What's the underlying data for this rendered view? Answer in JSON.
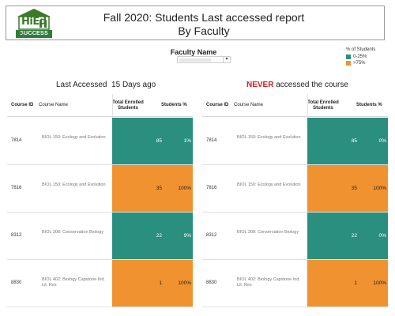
{
  "header": {
    "logo_text": "HiEd",
    "logo_subtext": "SUCCESS",
    "title_line1": "Fall 2020: Students Last accessed report",
    "title_line2": "By Faculty"
  },
  "filter": {
    "label": "Faculty Name",
    "arrow": "▾"
  },
  "legend": {
    "title": "% of Students",
    "items": [
      {
        "label": "0-25%",
        "color": "#2a8f7e"
      },
      {
        "label": ">75%",
        "color": "#f0922f"
      }
    ]
  },
  "left_section": {
    "title_prefix": "Last Accessed",
    "title_suffix": "15 Days ago"
  },
  "right_section": {
    "title_emph": "NEVER",
    "title_rest": "accessed the course"
  },
  "columns": {
    "id": "Course ID",
    "name": "Course Name",
    "enrolled_line1": "Total Enrolled",
    "enrolled_line2": "Students",
    "pct": "Students %"
  },
  "left_rows": [
    {
      "id": "7814",
      "name": "BIOL 150: Ecology and Evolution",
      "enrolled": "85",
      "pct": "1%",
      "band": "0-25%"
    },
    {
      "id": "7816",
      "name": "BIOL 150: Ecology and Evolution",
      "enrolled": "35",
      "pct": "100%",
      "band": ">75%"
    },
    {
      "id": "8312",
      "name": "BIOL 308: Conservation Biology",
      "enrolled": "22",
      "pct": "9%",
      "band": "0-25%"
    },
    {
      "id": "8830",
      "name": "BIOL 402: Biology Capstone Ind. Lit. Res",
      "enrolled": "1",
      "pct": "100%",
      "band": ">75%"
    }
  ],
  "right_rows": [
    {
      "id": "7814",
      "name": "BIOL 150: Ecology and Evolution",
      "enrolled": "85",
      "pct": "0%",
      "band": "0-25%"
    },
    {
      "id": "7816",
      "name": "BIOL 150: Ecology and Evolution",
      "enrolled": "35",
      "pct": "100%",
      "band": ">75%"
    },
    {
      "id": "8312",
      "name": "BIOL 308: Conservation Biology",
      "enrolled": "22",
      "pct": "0%",
      "band": "0-25%"
    },
    {
      "id": "8830",
      "name": "BIOL 402: Biology Capstone Ind. Lit. Res",
      "enrolled": "1",
      "pct": "100%",
      "band": ">75%"
    }
  ]
}
